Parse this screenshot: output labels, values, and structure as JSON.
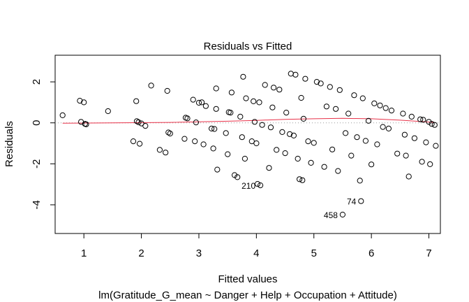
{
  "chart_data": {
    "type": "scatter",
    "title": "Residuals vs Fitted",
    "xlabel": "Fitted values",
    "ylabel": "Residuals",
    "subtitle": "lm(Gratitude_G_mean ~ Danger + Help + Occupation + Attitude)",
    "xlim": [
      0.5,
      7.2
    ],
    "ylim": [
      -5.4,
      3.3
    ],
    "xticks": [
      "1",
      "2",
      "3",
      "4",
      "5",
      "6",
      "7"
    ],
    "yticks": [
      "-4",
      "-2",
      "0",
      "2"
    ],
    "grid": false,
    "reference_line_y": 0,
    "colors": {
      "points": "#000000",
      "smooth": "#e8334a",
      "reference": "#999999"
    },
    "points": [
      [
        0.63,
        0.37
      ],
      [
        0.93,
        1.08
      ],
      [
        0.95,
        0.05
      ],
      [
        1.0,
        1.0
      ],
      [
        1.02,
        -0.05
      ],
      [
        1.04,
        -0.07
      ],
      [
        1.42,
        0.57
      ],
      [
        1.86,
        -0.9
      ],
      [
        1.91,
        1.06
      ],
      [
        1.92,
        0.08
      ],
      [
        1.95,
        0.03
      ],
      [
        1.97,
        -1.02
      ],
      [
        2.0,
        -0.03
      ],
      [
        2.07,
        -0.15
      ],
      [
        2.17,
        1.82
      ],
      [
        2.32,
        -1.32
      ],
      [
        2.42,
        -1.45
      ],
      [
        2.45,
        1.56
      ],
      [
        2.47,
        -0.47
      ],
      [
        2.5,
        -0.52
      ],
      [
        2.75,
        -0.78
      ],
      [
        2.77,
        0.25
      ],
      [
        2.8,
        0.22
      ],
      [
        2.9,
        1.13
      ],
      [
        2.93,
        -0.9
      ],
      [
        2.95,
        0.02
      ],
      [
        3.0,
        0.98
      ],
      [
        3.05,
        1.0
      ],
      [
        3.08,
        -1.05
      ],
      [
        3.12,
        0.82
      ],
      [
        3.22,
        -0.28
      ],
      [
        3.25,
        -1.25
      ],
      [
        3.27,
        -0.3
      ],
      [
        3.3,
        0.68
      ],
      [
        3.32,
        -2.28
      ],
      [
        3.3,
        1.68
      ],
      [
        3.47,
        -0.5
      ],
      [
        3.5,
        -1.53
      ],
      [
        3.52,
        0.52
      ],
      [
        3.55,
        0.5
      ],
      [
        3.57,
        1.48
      ],
      [
        3.62,
        -2.55
      ],
      [
        3.67,
        -2.65
      ],
      [
        3.72,
        0.3
      ],
      [
        3.75,
        -0.7
      ],
      [
        3.77,
        2.25
      ],
      [
        3.8,
        -1.75
      ],
      [
        3.82,
        1.2
      ],
      [
        3.92,
        -0.9
      ],
      [
        3.95,
        1.05
      ],
      [
        3.97,
        0.05
      ],
      [
        4.0,
        -1.0
      ],
      [
        4.02,
        -2.98
      ],
      [
        4.05,
        1.0
      ],
      [
        4.07,
        -3.05
      ],
      [
        4.1,
        -0.1
      ],
      [
        4.15,
        1.85
      ],
      [
        4.22,
        -2.2
      ],
      [
        4.25,
        -0.22
      ],
      [
        4.28,
        0.75
      ],
      [
        4.3,
        1.72
      ],
      [
        4.35,
        -1.32
      ],
      [
        4.4,
        1.62
      ],
      [
        4.45,
        -0.45
      ],
      [
        4.5,
        -1.48
      ],
      [
        4.52,
        0.5
      ],
      [
        4.58,
        -0.55
      ],
      [
        4.6,
        2.4
      ],
      [
        4.65,
        -0.62
      ],
      [
        4.68,
        2.35
      ],
      [
        4.72,
        -1.75
      ],
      [
        4.75,
        -2.75
      ],
      [
        4.78,
        1.22
      ],
      [
        4.8,
        -2.8
      ],
      [
        4.82,
        0.2
      ],
      [
        4.85,
        2.15
      ],
      [
        4.9,
        -0.9
      ],
      [
        4.95,
        -1.95
      ],
      [
        5.0,
        -0.98
      ],
      [
        5.05,
        2.0
      ],
      [
        5.12,
        1.92
      ],
      [
        5.18,
        -2.15
      ],
      [
        5.22,
        0.8
      ],
      [
        5.28,
        1.75
      ],
      [
        5.32,
        -1.3
      ],
      [
        5.38,
        0.68
      ],
      [
        5.42,
        -2.35
      ],
      [
        5.45,
        1.6
      ],
      [
        5.5,
        -4.48
      ],
      [
        5.55,
        -0.5
      ],
      [
        5.6,
        0.45
      ],
      [
        5.65,
        -1.6
      ],
      [
        5.7,
        1.35
      ],
      [
        5.75,
        -0.7
      ],
      [
        5.8,
        -2.82
      ],
      [
        5.82,
        -3.82
      ],
      [
        5.85,
        1.2
      ],
      [
        5.9,
        -0.88
      ],
      [
        5.95,
        0.1
      ],
      [
        6.0,
        -2.03
      ],
      [
        6.05,
        0.95
      ],
      [
        6.1,
        -1.05
      ],
      [
        6.15,
        0.85
      ],
      [
        6.2,
        -0.2
      ],
      [
        6.25,
        0.72
      ],
      [
        6.3,
        -0.28
      ],
      [
        6.35,
        0.6
      ],
      [
        6.45,
        -1.5
      ],
      [
        6.55,
        0.45
      ],
      [
        6.58,
        -0.58
      ],
      [
        6.6,
        -1.6
      ],
      [
        6.65,
        -2.62
      ],
      [
        6.7,
        0.3
      ],
      [
        6.75,
        -0.75
      ],
      [
        6.85,
        0.17
      ],
      [
        6.88,
        -1.9
      ],
      [
        6.9,
        0.15
      ],
      [
        6.95,
        -0.95
      ],
      [
        7.0,
        0.05
      ],
      [
        7.02,
        -2.02
      ],
      [
        7.05,
        -0.05
      ],
      [
        7.1,
        -0.1
      ],
      [
        7.12,
        -1.12
      ]
    ],
    "smooth_line": [
      [
        0.63,
        -0.02
      ],
      [
        1.5,
        0.0
      ],
      [
        2.5,
        0.02
      ],
      [
        3.5,
        0.08
      ],
      [
        4.0,
        0.12
      ],
      [
        4.5,
        0.17
      ],
      [
        5.0,
        0.2
      ],
      [
        5.5,
        0.22
      ],
      [
        6.0,
        0.2
      ],
      [
        6.5,
        0.13
      ],
      [
        7.1,
        0.02
      ]
    ],
    "annotations": [
      {
        "label": "210",
        "x": 4.07,
        "y": -3.05
      },
      {
        "label": "74",
        "x": 5.82,
        "y": -3.82
      },
      {
        "label": "458",
        "x": 5.5,
        "y": -4.48
      }
    ]
  }
}
